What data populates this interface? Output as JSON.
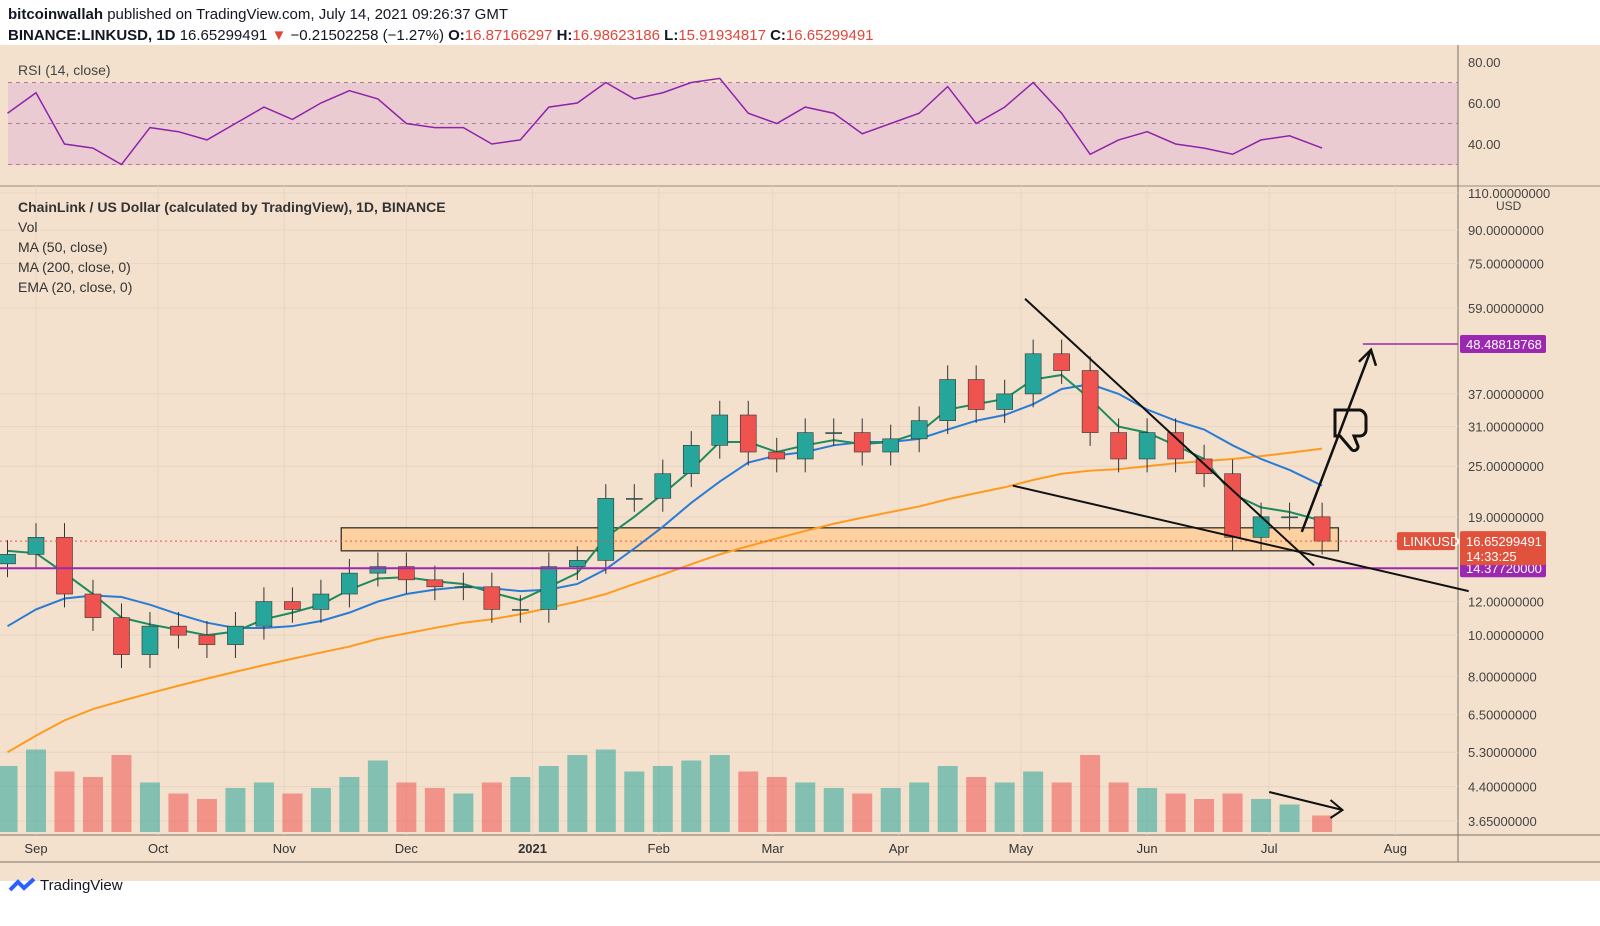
{
  "header": {
    "author": "bitcoinwallah",
    "published": "published on TradingView.com, July 14, 2021 09:26:37 GMT",
    "symbol": "BINANCE:LINKUSD, 1D",
    "last": "16.65299491",
    "arrow": "▼",
    "change": "−0.21502258 (−1.27%)",
    "o_label": "O:",
    "o": "16.87166297",
    "h_label": "H:",
    "h": "16.98623186",
    "l_label": "L:",
    "l": "15.91934817",
    "c_label": "C:",
    "c": "16.65299491"
  },
  "rsi": {
    "label": "RSI (14, close)",
    "ticks": [
      "80.00",
      "60.00",
      "40.00"
    ],
    "color": "#8e24aa"
  },
  "legend": [
    "ChainLink / US Dollar (calculated by TradingView), 1D, BINANCE",
    "Vol",
    "MA (50, close)",
    "MA (200, close, 0)",
    "EMA (20, close, 0)"
  ],
  "axis": {
    "currency": "USD",
    "ticks": [
      "110.00000000",
      "90.00000000",
      "75.00000000",
      "59.00000000",
      "37.00000000",
      "31.00000000",
      "25.00000000",
      "19.00000000",
      "12.00000000",
      "10.00000000",
      "8.00000000",
      "6.50000000",
      "5.30000000",
      "4.40000000",
      "3.65000000"
    ],
    "labels": {
      "target": "48.48818768",
      "symbol": "LINKUSD",
      "price": "16.65299491",
      "countdown": "14:33:25",
      "support": "14.37720000"
    }
  },
  "time_axis": [
    "Sep",
    "Oct",
    "Nov",
    "Dec",
    "2021",
    "Feb",
    "Mar",
    "Apr",
    "May",
    "Jun",
    "Jul",
    "Aug"
  ],
  "footer": {
    "brand": "TradingView"
  },
  "colors": {
    "bg": "#f3e1cd",
    "up": "#26a69a",
    "down": "#ef5350",
    "ma50": "#2a7bd6",
    "ma200": "#ff9a1f",
    "ema20": "#1e8a5e",
    "zone": "#ffcf99",
    "purple": "#9c27b0"
  },
  "chart_data": {
    "type": "candlestick",
    "scale": "log",
    "ylim": [
      3.65,
      110
    ],
    "grid": true,
    "dates": [
      "2020-08-25",
      "2020-09-01",
      "2020-09-08",
      "2020-09-15",
      "2020-09-22",
      "2020-09-29",
      "2020-10-06",
      "2020-10-13",
      "2020-10-20",
      "2020-10-27",
      "2020-11-03",
      "2020-11-10",
      "2020-11-17",
      "2020-11-24",
      "2020-12-01",
      "2020-12-08",
      "2020-12-15",
      "2020-12-22",
      "2020-12-29",
      "2021-01-05",
      "2021-01-12",
      "2021-01-19",
      "2021-01-26",
      "2021-02-02",
      "2021-02-09",
      "2021-02-16",
      "2021-02-23",
      "2021-03-02",
      "2021-03-09",
      "2021-03-16",
      "2021-03-23",
      "2021-03-30",
      "2021-04-06",
      "2021-04-13",
      "2021-04-20",
      "2021-04-27",
      "2021-05-04",
      "2021-05-11",
      "2021-05-18",
      "2021-05-25",
      "2021-06-01",
      "2021-06-08",
      "2021-06-15",
      "2021-06-22",
      "2021-06-29",
      "2021-07-06",
      "2021-07-14"
    ],
    "close": [
      15.5,
      17,
      12.5,
      11,
      9,
      10.5,
      10,
      9.5,
      10.5,
      12,
      11.5,
      12.5,
      14,
      14.5,
      13.5,
      13,
      13,
      11.5,
      11.5,
      14.5,
      15,
      21,
      21,
      24,
      28,
      33,
      27,
      26,
      30,
      30,
      27,
      29,
      32,
      40,
      34,
      37,
      46,
      42,
      30,
      26,
      30,
      26,
      24,
      17,
      19,
      19,
      16.65
    ],
    "ma50": [
      10.5,
      11.5,
      12.2,
      12.4,
      12.3,
      11.8,
      11.2,
      10.7,
      10.4,
      10.4,
      10.5,
      10.8,
      11.3,
      12,
      12.5,
      12.8,
      13,
      12.9,
      12.7,
      12.8,
      13.2,
      14.3,
      16,
      18,
      20.5,
      23,
      25.5,
      26.5,
      27,
      28,
      28.5,
      28.5,
      29,
      30.5,
      32,
      33,
      35,
      38,
      39,
      37,
      34,
      32,
      30.5,
      28,
      26,
      24.5,
      22.5
    ],
    "ma200": [
      5.3,
      5.8,
      6.3,
      6.7,
      7,
      7.3,
      7.6,
      7.9,
      8.2,
      8.5,
      8.8,
      9.1,
      9.4,
      9.8,
      10.1,
      10.4,
      10.7,
      10.9,
      11.2,
      11.6,
      12,
      12.5,
      13.2,
      13.9,
      14.7,
      15.5,
      16.2,
      16.9,
      17.6,
      18.3,
      18.9,
      19.5,
      20.1,
      20.9,
      21.6,
      22.3,
      23.2,
      24,
      24.4,
      24.6,
      25,
      25.4,
      25.7,
      26,
      26.4,
      26.9,
      27.5
    ],
    "ema20": [
      15.8,
      15.6,
      14,
      12.5,
      11,
      10.6,
      10.3,
      10,
      10.2,
      10.9,
      11.3,
      11.8,
      12.8,
      13.6,
      13.7,
      13.4,
      13.2,
      12.6,
      12.1,
      13,
      14,
      17,
      19,
      21.5,
      24.5,
      28.5,
      28.5,
      27,
      28,
      28.8,
      28.2,
      28.5,
      30,
      34,
      35,
      36,
      40,
      41,
      36,
      31,
      30,
      28,
      26,
      21.5,
      20,
      19.5,
      18.6
    ],
    "volume": [
      60,
      75,
      55,
      50,
      70,
      45,
      35,
      30,
      40,
      45,
      35,
      40,
      50,
      65,
      45,
      40,
      35,
      45,
      50,
      60,
      70,
      75,
      55,
      60,
      65,
      70,
      55,
      50,
      45,
      40,
      35,
      40,
      45,
      60,
      50,
      45,
      55,
      45,
      70,
      45,
      40,
      35,
      30,
      35,
      30,
      25,
      15
    ],
    "rsi": [
      55,
      65,
      40,
      38,
      30,
      48,
      46,
      42,
      50,
      58,
      52,
      60,
      66,
      62,
      50,
      48,
      48,
      40,
      42,
      58,
      60,
      70,
      62,
      65,
      70,
      72,
      55,
      50,
      58,
      55,
      45,
      50,
      55,
      68,
      50,
      58,
      70,
      55,
      35,
      42,
      46,
      40,
      38,
      35,
      42,
      44,
      38
    ],
    "annotations": {
      "zone": {
        "from": "2020-11-15",
        "to": "2021-07-18",
        "low": 15.8,
        "high": 17.9
      },
      "support": 14.3772,
      "target": {
        "from": "2021-07-24",
        "to": "2021-08-15",
        "price": 48.48818768
      },
      "trendlines": [
        {
          "from": [
            "2021-05-02",
            62
          ],
          "to": [
            "2021-07-12",
            14.6
          ]
        },
        {
          "from": [
            "2021-04-29",
            22.5
          ],
          "to": [
            "2021-08-19",
            12.7
          ]
        }
      ],
      "arrow": {
        "from": [
          "2021-07-09",
          17.5
        ],
        "to": [
          "2021-07-26",
          47
        ]
      },
      "volume_arrow": {
        "from": "2021-07-01",
        "to": "2021-07-19"
      }
    }
  }
}
